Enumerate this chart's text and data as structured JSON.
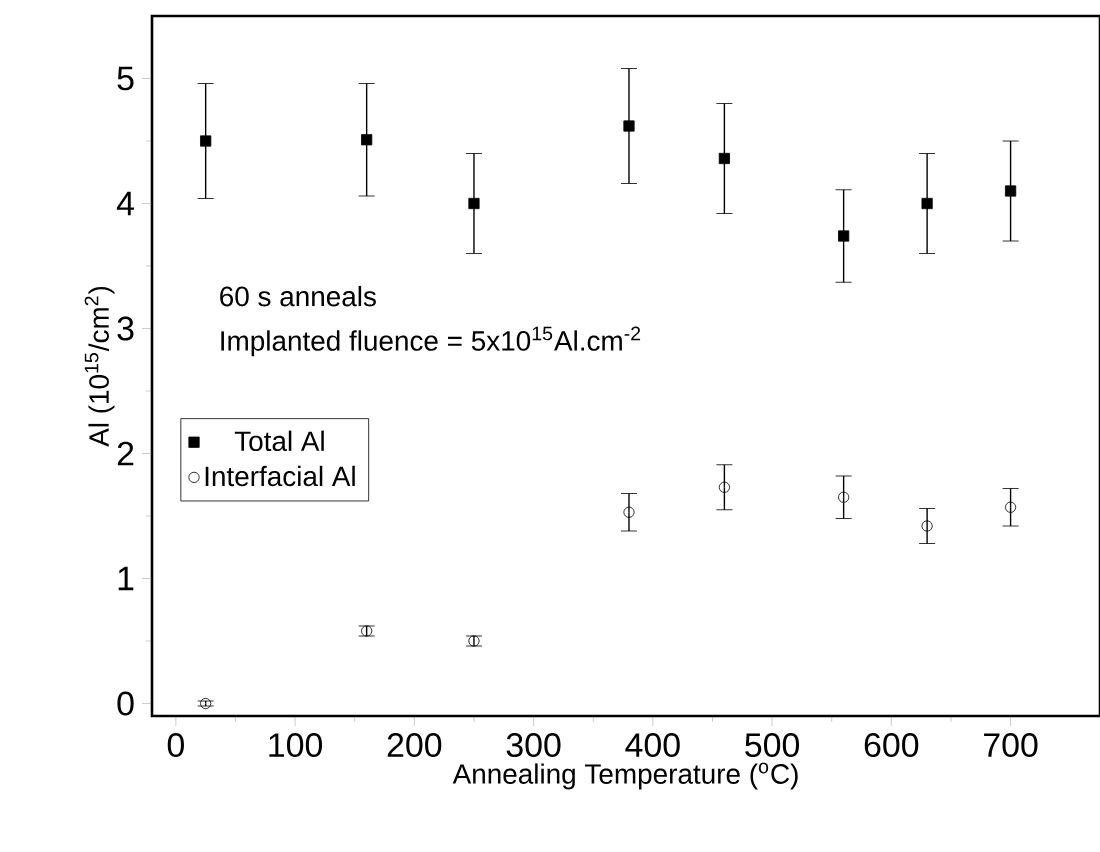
{
  "chart_data": {
    "type": "scatter",
    "xlabel": "Annealing Temperature ($^{o}$C)",
    "ylabel": "Al (10$^{15}$/cm$^{2}$)",
    "x": [
      25,
      160,
      250,
      380,
      460,
      560,
      630,
      700
    ],
    "series": [
      {
        "name": "Total Al",
        "color": "#000000",
        "marker": "square",
        "values": [
          4.5,
          4.51,
          4.0,
          4.62,
          4.36,
          3.74,
          4.0,
          4.1
        ],
        "errors": [
          0.46,
          0.45,
          0.4,
          0.46,
          0.44,
          0.37,
          0.4,
          0.4
        ]
      },
      {
        "name": "Interfacial Al",
        "color": "#000000",
        "marker": "circle",
        "values": [
          0,
          0.58,
          0.5,
          1.53,
          1.73,
          1.65,
          1.42,
          1.57
        ],
        "errors": [
          0.02,
          0.04,
          0.04,
          0.15,
          0.18,
          0.17,
          0.14,
          0.15
        ]
      }
    ],
    "annotations": [
      "60 s anneals",
      "Implanted fluence = 5x10$^{15}$Al.cm$^{-2}$"
    ],
    "xlim": [
      -20,
      775
    ],
    "ylim": [
      -0.1,
      5.5
    ],
    "xticks": [
      0,
      100,
      200,
      300,
      400,
      500,
      600,
      700
    ],
    "yticks": [
      0,
      1,
      2,
      3,
      4,
      5
    ],
    "legend": "center left",
    "grid": false
  }
}
